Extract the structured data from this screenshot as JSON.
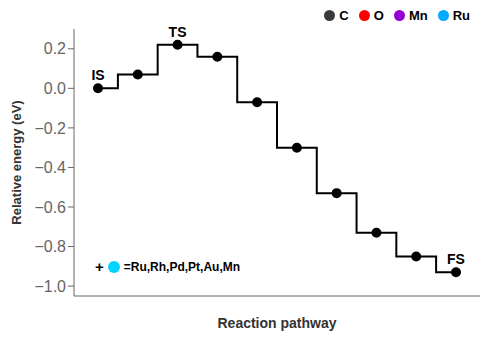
{
  "chart_data": {
    "type": "line",
    "xlabel": "Reaction pathway",
    "ylabel": "Relative energy (eV)",
    "categories": [
      null,
      null,
      null,
      null,
      null,
      null,
      null,
      null,
      null,
      null
    ],
    "values": [
      0.0,
      0.07,
      0.22,
      0.16,
      -0.07,
      -0.3,
      -0.53,
      -0.73,
      -0.85,
      -0.93
    ],
    "point_labels": [
      "IS",
      null,
      "TS",
      null,
      null,
      null,
      null,
      null,
      null,
      "FS"
    ],
    "color": "black",
    "marker": "circle",
    "line_style": "step",
    "ylim": [
      -1.05,
      0.3
    ],
    "yticks": [
      {
        "value": -1.0,
        "label": "−1.0"
      },
      {
        "value": -0.8,
        "label": "−0.8"
      },
      {
        "value": -0.6,
        "label": "−0.6"
      },
      {
        "value": -0.4,
        "label": "−0.4"
      },
      {
        "value": -0.2,
        "label": "−0.2"
      },
      {
        "value": 0.0,
        "label": "0.0"
      },
      0.2
    ],
    "grid": false,
    "tick_labels": "y",
    "legend": "upper right",
    "legend_entries": [
      {
        "name": "C",
        "color": "#3a3a3a"
      },
      {
        "name": "O",
        "color": "#ff0000"
      },
      {
        "name": "Mn",
        "color": "#9400d3"
      },
      {
        "name": "Ru",
        "color": "#00aaff"
      }
    ],
    "annotation": {
      "prefix": "+",
      "color": "#00d4ff",
      "text": "=Ru,Rh,Pd,Pt,Au,Mn"
    }
  }
}
